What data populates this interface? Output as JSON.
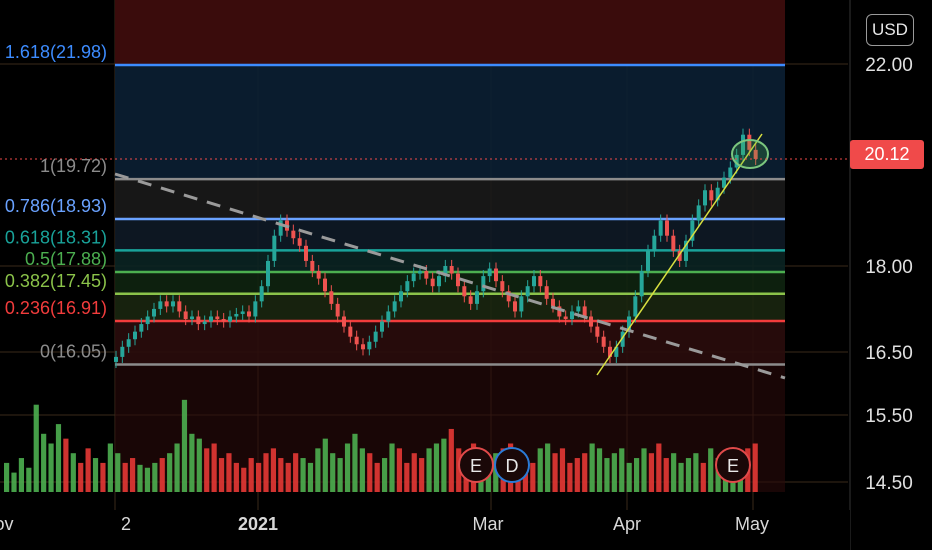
{
  "currency_button": "USD",
  "last_price_label": "20.12",
  "chart_data": {
    "type": "candlestick",
    "price_axis_ticks": [
      "22.00",
      "18.00",
      "16.50",
      "15.50",
      "14.50"
    ],
    "time_axis_labels": [
      "ov",
      "2",
      "2021",
      "Mar",
      "Apr",
      "May"
    ],
    "last_price": 20.12,
    "fib_levels": [
      {
        "label": "1.618(21.98)",
        "ratio": 1.618,
        "price": 21.98,
        "color": "#3d8cff"
      },
      {
        "label": "1(19.72)",
        "ratio": 1,
        "price": 19.72,
        "color": "#8c8c8c"
      },
      {
        "label": "0.786(18.93)",
        "ratio": 0.786,
        "price": 18.93,
        "color": "#6aa2ff"
      },
      {
        "label": "0.618(18.31)",
        "ratio": 0.618,
        "price": 18.31,
        "color": "#19a39a"
      },
      {
        "label": "0.5(17.88)",
        "ratio": 0.5,
        "price": 17.88,
        "color": "#4caf50"
      },
      {
        "label": "0.382(17.45)",
        "ratio": 0.382,
        "price": 17.45,
        "color": "#8bc34a"
      },
      {
        "label": "0.236(16.91)",
        "ratio": 0.236,
        "price": 16.91,
        "color": "#f23c3c"
      },
      {
        "label": "0(16.05)",
        "ratio": 0,
        "price": 16.05,
        "color": "#8c8c8c"
      }
    ],
    "closes": [
      16.2,
      16.4,
      16.55,
      16.7,
      16.85,
      17.0,
      17.15,
      17.3,
      17.2,
      17.3,
      17.1,
      16.95,
      17.0,
      16.85,
      16.9,
      17.0,
      16.95,
      16.9,
      17.0,
      17.05,
      17.1,
      17.0,
      17.3,
      17.6,
      18.1,
      18.6,
      18.9,
      18.7,
      18.55,
      18.4,
      18.1,
      17.9,
      17.75,
      17.5,
      17.25,
      17.0,
      16.8,
      16.6,
      16.45,
      16.35,
      16.5,
      16.7,
      16.9,
      17.1,
      17.3,
      17.5,
      17.7,
      17.85,
      17.9,
      17.75,
      17.6,
      17.8,
      18.0,
      17.85,
      17.6,
      17.4,
      17.25,
      17.5,
      17.8,
      17.95,
      17.7,
      17.5,
      17.3,
      17.1,
      17.4,
      17.6,
      17.8,
      17.6,
      17.35,
      17.2,
      17.0,
      16.95,
      17.1,
      17.2,
      17.0,
      16.8,
      16.6,
      16.4,
      16.2,
      16.4,
      16.7,
      17.0,
      17.4,
      17.9,
      18.3,
      18.6,
      18.9,
      18.6,
      18.3,
      18.1,
      18.5,
      18.9,
      19.2,
      19.5,
      19.3,
      19.55,
      19.75,
      19.95,
      20.2,
      20.6,
      20.3,
      20.12
    ],
    "volumes": [
      0.3,
      0.2,
      0.35,
      0.25,
      0.9,
      0.6,
      0.5,
      0.7,
      0.55,
      0.4,
      0.3,
      0.45,
      0.35,
      0.3,
      0.5,
      0.4,
      0.3,
      0.35,
      0.28,
      0.25,
      0.3,
      0.35,
      0.4,
      0.5,
      0.95,
      0.6,
      0.55,
      0.45,
      0.5,
      0.35,
      0.4,
      0.3,
      0.25,
      0.35,
      0.3,
      0.4,
      0.45,
      0.35,
      0.3,
      0.4,
      0.35,
      0.3,
      0.45,
      0.55,
      0.4,
      0.35,
      0.5,
      0.6,
      0.45,
      0.4,
      0.3,
      0.35,
      0.5,
      0.45,
      0.3,
      0.4,
      0.35,
      0.45,
      0.5,
      0.55,
      0.65,
      0.45,
      0.4,
      0.5,
      0.35,
      0.3,
      0.4,
      0.45,
      0.5,
      0.4,
      0.35,
      0.3,
      0.45,
      0.5,
      0.4,
      0.45,
      0.3,
      0.35,
      0.4,
      0.5,
      0.45,
      0.35,
      0.4,
      0.45,
      0.3,
      0.35,
      0.45,
      0.4,
      0.5,
      0.35,
      0.4,
      0.3,
      0.35,
      0.4,
      0.3,
      0.45,
      0.35,
      0.4,
      0.3,
      0.4,
      0.45,
      0.5
    ],
    "earnings_markers": [
      {
        "label": "E",
        "color": "#e04a4a"
      },
      {
        "label": "D",
        "color": "#2b7bd6"
      },
      {
        "label": "E",
        "color": "#e04a4a"
      }
    ]
  }
}
